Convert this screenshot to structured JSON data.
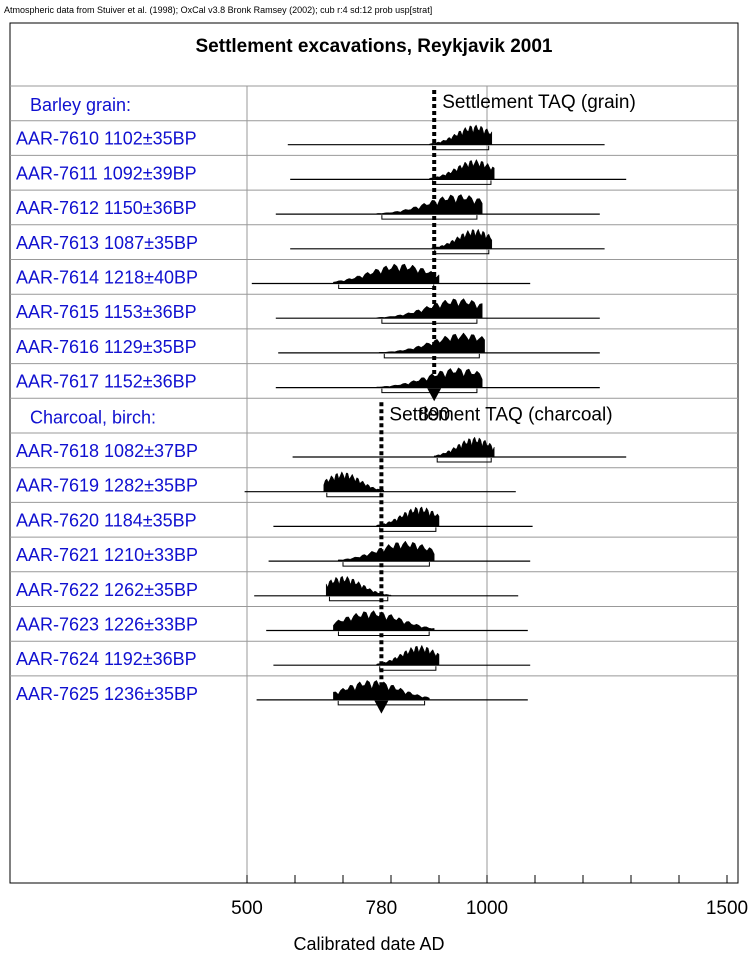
{
  "header_note": "Atmospheric data from Stuiver et al. (1998); OxCal v3.8 Bronk Ramsey (2002); cub r:4 sd:12 prob usp[strat]",
  "chart_data": {
    "type": "area",
    "title": "Settlement excavations, Reykjavik 2001",
    "xlabel": "Calibrated date AD",
    "xlim": [
      500,
      1500
    ],
    "xticks": [
      "500",
      "780",
      "1000",
      "1500"
    ],
    "groups": [
      {
        "label": "Barley grain:",
        "taq_label": "Settlement TAQ (grain)",
        "taq_value": 890,
        "taq_value_label": "890",
        "samples": [
          {
            "label": "AAR-7610  1102±35BP",
            "range": [
              880,
              1010
            ],
            "peak": 975,
            "span": [
              585,
              1245
            ]
          },
          {
            "label": "AAR-7611  1092±39BP",
            "range": [
              880,
              1015
            ],
            "peak": 975,
            "span": [
              590,
              1290
            ]
          },
          {
            "label": "AAR-7612  1150±36BP",
            "range": [
              770,
              990
            ],
            "peak": 940,
            "span": [
              560,
              1235
            ]
          },
          {
            "label": "AAR-7613  1087±35BP",
            "range": [
              885,
              1010
            ],
            "peak": 975,
            "span": [
              590,
              1245
            ]
          },
          {
            "label": "AAR-7614  1218±40BP",
            "range": [
              680,
              900
            ],
            "peak": 820,
            "span": [
              510,
              1090
            ]
          },
          {
            "label": "AAR-7615  1153±36BP",
            "range": [
              770,
              990
            ],
            "peak": 940,
            "span": [
              560,
              1235
            ]
          },
          {
            "label": "AAR-7616  1129±35BP",
            "range": [
              775,
              995
            ],
            "peak": 950,
            "span": [
              565,
              1235
            ]
          },
          {
            "label": "AAR-7617  1152±36BP",
            "range": [
              770,
              990
            ],
            "peak": 940,
            "span": [
              560,
              1235
            ]
          }
        ]
      },
      {
        "label": "Charcoal, birch:",
        "taq_label": "Settlement TAQ (charcoal)",
        "taq_value": 780,
        "taq_value_label": "780",
        "samples": [
          {
            "label": "AAR-7618  1082±37BP",
            "range": [
              890,
              1015
            ],
            "peak": 975,
            "span": [
              595,
              1290
            ]
          },
          {
            "label": "AAR-7619  1282±35BP",
            "range": [
              660,
              785
            ],
            "peak": 700,
            "span": [
              495,
              1060
            ]
          },
          {
            "label": "AAR-7620  1184±35BP",
            "range": [
              770,
              900
            ],
            "peak": 860,
            "span": [
              555,
              1095
            ]
          },
          {
            "label": "AAR-7621  1210±33BP",
            "range": [
              690,
              890
            ],
            "peak": 830,
            "span": [
              545,
              1090
            ]
          },
          {
            "label": "AAR-7622  1262±35BP",
            "range": [
              665,
              800
            ],
            "peak": 700,
            "span": [
              515,
              1065
            ]
          },
          {
            "label": "AAR-7623  1226±33BP",
            "range": [
              680,
              890
            ],
            "peak": 760,
            "span": [
              540,
              1085
            ]
          },
          {
            "label": "AAR-7624  1192±36BP",
            "range": [
              770,
              900
            ],
            "peak": 860,
            "span": [
              555,
              1090
            ]
          },
          {
            "label": "AAR-7625  1236±35BP",
            "range": [
              680,
              880
            ],
            "peak": 760,
            "span": [
              520,
              1085
            ]
          }
        ]
      }
    ]
  }
}
